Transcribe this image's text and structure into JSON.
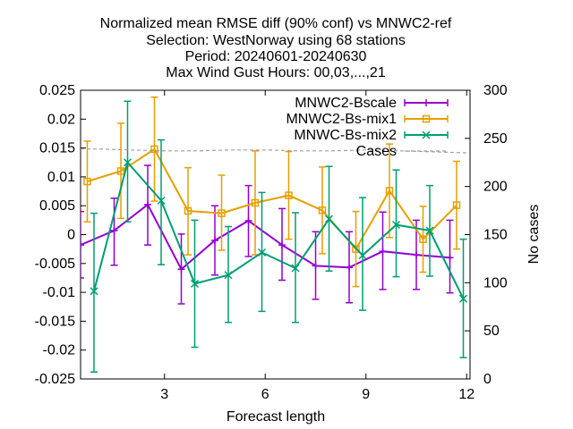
{
  "chart_data": {
    "type": "line",
    "title_lines": [
      "Normalized mean RMSE diff (90% conf) vs MNWC2-ref",
      "Selection: WestNorway using    68 stations",
      "Period: 20240601-20240630",
      "Max Wind Gust   Hours: 00,03,...,21"
    ],
    "xlabel": "Forecast length",
    "ylabel_right": "No cases",
    "xlim": [
      0.5,
      12.1
    ],
    "ylim": [
      -0.025,
      0.025
    ],
    "y2lim": [
      0,
      300
    ],
    "xticks": [
      3,
      6,
      9,
      12
    ],
    "yticks": [
      -0.025,
      -0.02,
      -0.015,
      -0.01,
      -0.005,
      0,
      0.005,
      0.01,
      0.015,
      0.02,
      0.025
    ],
    "yticklabels": [
      "-0.025",
      "-0.02",
      "-0.015",
      "-0.01",
      "-0.005",
      "0",
      "0.005",
      "0.01",
      "0.015",
      "0.02",
      "0.025"
    ],
    "y2ticks": [
      0,
      50,
      100,
      150,
      200,
      250,
      300
    ],
    "legend_position": "top-right",
    "series": [
      {
        "name": "MNWC2-Bscale",
        "color": "#9400d3",
        "marker": "plus",
        "x": [
          0.5,
          1.5,
          2.5,
          3.5,
          4.5,
          5.5,
          6.5,
          7.5,
          8.5,
          9.5,
          10.5,
          11.5
        ],
        "y": [
          -0.0018,
          0.0007,
          0.0052,
          -0.006,
          -0.001,
          0.0024,
          -0.0018,
          -0.0054,
          -0.0057,
          -0.0029,
          -0.0035,
          -0.004
        ],
        "lo": [
          -0.0075,
          -0.0053,
          -0.0018,
          -0.012,
          -0.007,
          -0.0038,
          -0.0079,
          -0.0112,
          -0.0118,
          -0.0095,
          -0.0095,
          -0.0101
        ],
        "hi": [
          0.004,
          0.0063,
          0.012,
          0.0001,
          0.005,
          0.0085,
          0.0045,
          0.0005,
          0.0005,
          0.0039,
          0.0025,
          0.0025
        ]
      },
      {
        "name": "MNWC2-Bs-mix1",
        "color": "#e69f00",
        "marker": "square",
        "x": [
          0.7,
          1.7,
          2.7,
          3.7,
          4.7,
          5.7,
          6.7,
          7.7,
          8.7,
          9.7,
          10.7,
          11.7
        ],
        "y": [
          0.0092,
          0.011,
          0.0148,
          0.0041,
          0.0037,
          0.0055,
          0.0068,
          0.0042,
          -0.0025,
          0.0076,
          -0.0008,
          0.0051
        ],
        "lo": [
          0.0022,
          0.0028,
          0.0058,
          -0.0035,
          -0.0027,
          -0.0035,
          -0.0008,
          -0.0033,
          -0.009,
          -0.0005,
          -0.0065,
          -0.0025
        ],
        "hi": [
          0.0162,
          0.0193,
          0.0238,
          0.0116,
          0.0103,
          0.0145,
          0.0144,
          0.0117,
          0.004,
          0.0157,
          0.0049,
          0.0127
        ]
      },
      {
        "name": "MNWC-Bs-mix2",
        "color": "#009e73",
        "marker": "cross",
        "x": [
          0.9,
          1.9,
          2.9,
          3.9,
          4.9,
          5.9,
          6.9,
          7.9,
          8.9,
          9.9,
          10.9,
          11.9
        ],
        "y": [
          -0.0098,
          0.0125,
          0.0059,
          -0.0085,
          -0.007,
          -0.0031,
          -0.0058,
          0.0027,
          -0.0036,
          0.0017,
          0.0007,
          -0.0111
        ],
        "lo": [
          -0.0238,
          0.0022,
          -0.0052,
          -0.0195,
          -0.0152,
          -0.0133,
          -0.0152,
          -0.0063,
          -0.0131,
          -0.0073,
          -0.0072,
          -0.0213
        ],
        "hi": [
          0.0037,
          0.0231,
          0.0164,
          0.0025,
          0.0014,
          0.0073,
          0.0038,
          0.0118,
          0.0064,
          0.0112,
          0.0085,
          -0.0008
        ]
      },
      {
        "name": "Cases",
        "color": "#a0a0a0",
        "style": "dashed",
        "axis": "right",
        "x": [
          0.5,
          1,
          2,
          3,
          4,
          5,
          6,
          7,
          8,
          9,
          10,
          11,
          12
        ],
        "y": [
          239,
          239,
          238,
          237,
          237,
          238,
          238,
          237,
          237,
          238,
          237,
          236,
          235
        ]
      }
    ]
  }
}
